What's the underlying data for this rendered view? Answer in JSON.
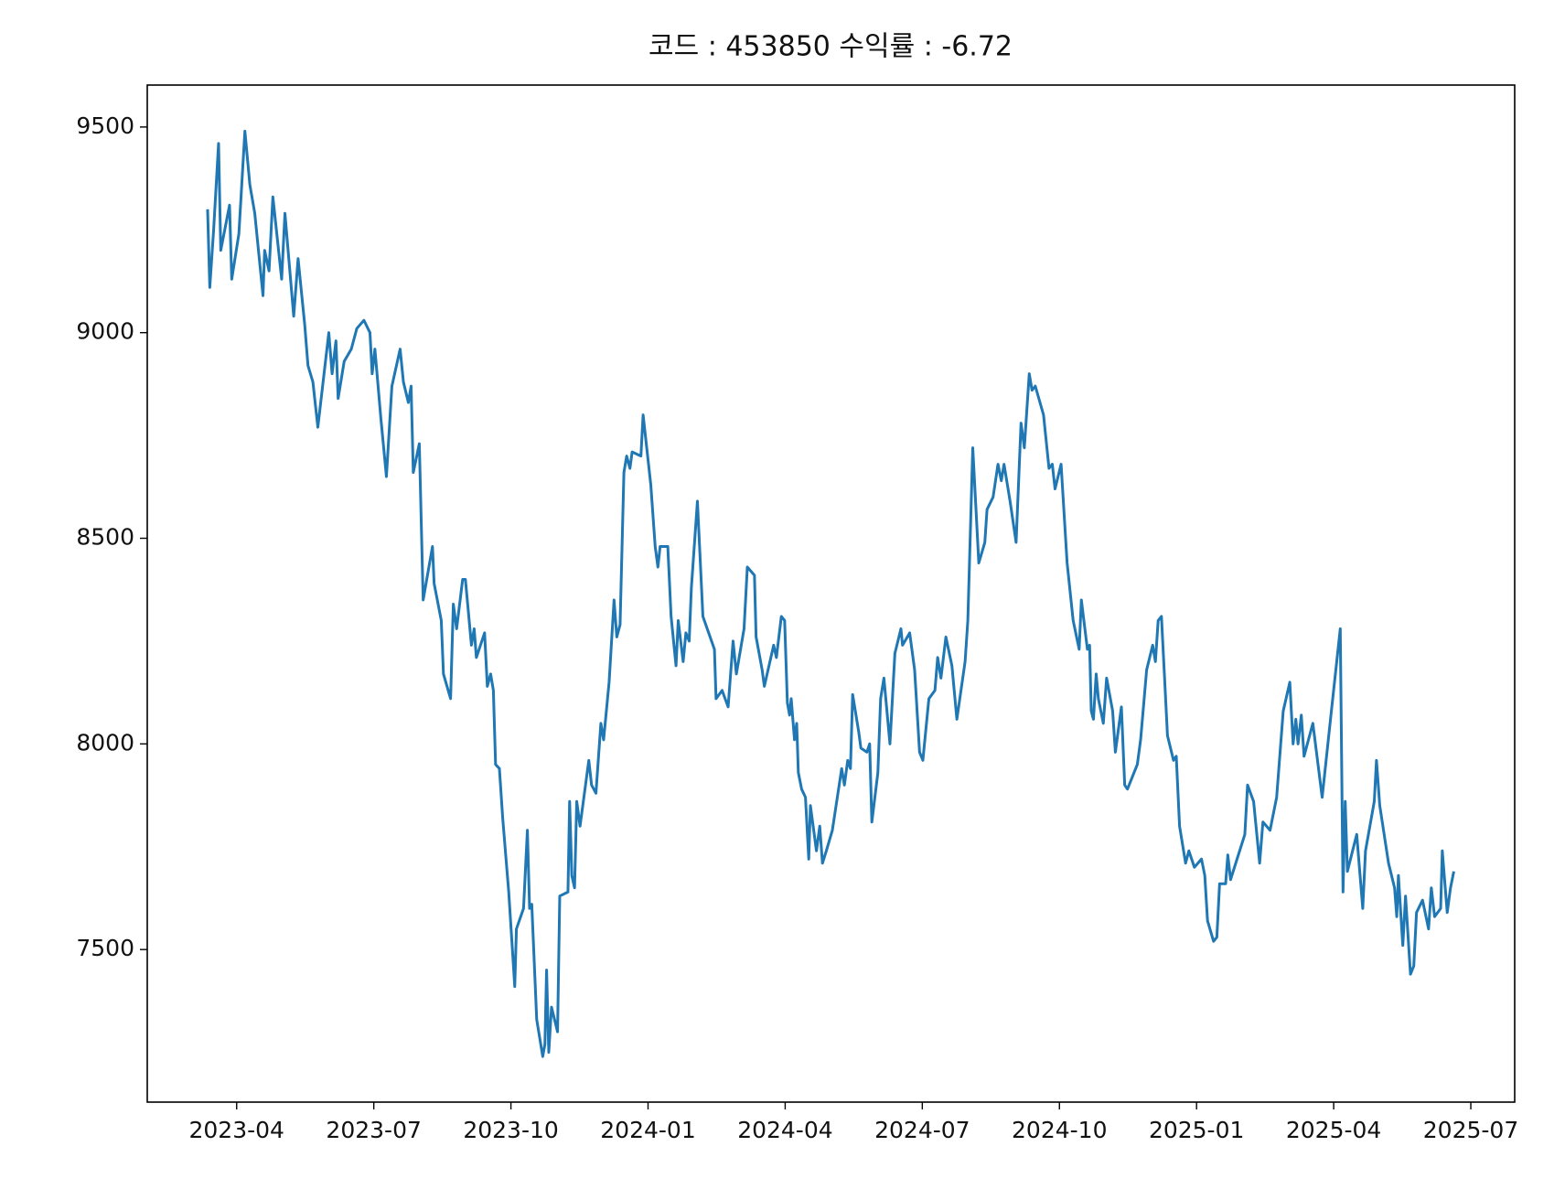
{
  "chart_data": {
    "type": "line",
    "title": "코드 : 453850 수익률 : -6.72",
    "color": "#1f77b4",
    "grid": false,
    "x": [
      2023.197,
      2023.201,
      2023.208,
      2023.217,
      2023.221,
      2023.237,
      2023.241,
      2023.254,
      2023.265,
      2023.274,
      2023.283,
      2023.298,
      2023.301,
      2023.309,
      2023.316,
      2023.332,
      2023.338,
      2023.354,
      2023.362,
      2023.374,
      2023.38,
      2023.389,
      2023.398,
      2023.418,
      2023.424,
      2023.431,
      2023.435,
      2023.446,
      2023.459,
      2023.469,
      2023.482,
      2023.493,
      2023.497,
      2023.502,
      2023.513,
      2023.523,
      2023.533,
      2023.548,
      2023.554,
      2023.563,
      2023.568,
      2023.572,
      2023.583,
      2023.59,
      2023.607,
      2023.61,
      2023.623,
      2023.627,
      2023.64,
      2023.645,
      2023.651,
      2023.662,
      2023.667,
      2023.678,
      2023.683,
      2023.687,
      2023.702,
      2023.707,
      2023.713,
      2023.718,
      2023.722,
      2023.729,
      2023.735,
      2023.746,
      2023.757,
      2023.76,
      2023.773,
      2023.78,
      2023.784,
      2023.788,
      2023.797,
      2023.808,
      2023.812,
      2023.815,
      2023.819,
      2023.824,
      2023.835,
      2023.839,
      2023.854,
      2023.857,
      2023.861,
      2023.866,
      2023.87,
      2023.876,
      2023.892,
      2023.897,
      2023.905,
      2023.914,
      2023.919,
      2023.929,
      2023.938,
      2023.943,
      2023.949,
      2023.956,
      2023.961,
      2023.967,
      2023.971,
      2023.987,
      2023.991,
      2024.005,
      2024.013,
      2024.018,
      2024.022,
      2024.036,
      2024.042,
      2024.051,
      2024.055,
      2024.064,
      2024.069,
      2024.075,
      2024.079,
      2024.09,
      2024.1,
      2024.121,
      2024.124,
      2024.135,
      2024.146,
      2024.155,
      2024.161,
      2024.175,
      2024.181,
      2024.194,
      2024.197,
      2024.208,
      2024.212,
      2024.229,
      2024.234,
      2024.243,
      2024.249,
      2024.254,
      2024.258,
      2024.261,
      2024.267,
      2024.271,
      2024.274,
      2024.28,
      2024.287,
      2024.293,
      2024.296,
      2024.307,
      2024.313,
      2024.318,
      2024.325,
      2024.336,
      2024.353,
      2024.358,
      2024.364,
      2024.369,
      2024.373,
      2024.384,
      2024.388,
      2024.399,
      2024.404,
      2024.408,
      2024.419,
      2024.424,
      2024.43,
      2024.441,
      2024.45,
      2024.461,
      2024.464,
      2024.477,
      2024.486,
      2024.495,
      2024.501,
      2024.512,
      2024.523,
      2024.528,
      2024.534,
      2024.543,
      2024.554,
      2024.563,
      2024.578,
      2024.583,
      2024.592,
      2024.603,
      2024.614,
      2024.618,
      2024.629,
      2024.638,
      2024.644,
      2024.649,
      2024.66,
      2024.671,
      2024.68,
      2024.686,
      2024.695,
      2024.7,
      2024.706,
      2024.721,
      2024.731,
      2024.737,
      2024.742,
      2024.753,
      2024.764,
      2024.775,
      2024.786,
      2024.79,
      2024.801,
      2024.805,
      2024.808,
      2024.812,
      2024.817,
      2024.821,
      2024.83,
      2024.836,
      2024.847,
      2024.852,
      2024.863,
      2024.869,
      2024.874,
      2024.892,
      2024.898,
      2024.909,
      2024.92,
      2024.925,
      2024.93,
      2024.936,
      2024.947,
      2024.958,
      2024.963,
      2024.969,
      2024.98,
      2024.986,
      2024.996,
      2025.009,
      2025.015,
      2025.02,
      2025.031,
      2025.037,
      2025.042,
      2025.053,
      2025.057,
      2025.062,
      2025.088,
      2025.093,
      2025.104,
      2025.115,
      2025.121,
      2025.134,
      2025.146,
      2025.158,
      2025.17,
      2025.176,
      2025.181,
      2025.185,
      2025.191,
      2025.196,
      2025.212,
      2025.229,
      2025.245,
      2025.262,
      2025.267,
      2025.271,
      2025.275,
      2025.292,
      2025.303,
      2025.308,
      2025.324,
      2025.328,
      2025.334,
      2025.35,
      2025.361,
      2025.365,
      2025.368,
      2025.376,
      2025.381,
      2025.39,
      2025.396,
      2025.401,
      2025.412,
      2025.423,
      2025.428,
      2025.434,
      2025.445,
      2025.448,
      2025.457,
      2025.463,
      2025.469
    ],
    "values": [
      9300,
      9110,
      9250,
      9460,
      9200,
      9310,
      9130,
      9240,
      9490,
      9360,
      9290,
      9090,
      9200,
      9150,
      9330,
      9130,
      9290,
      9040,
      9180,
      9020,
      8920,
      8880,
      8770,
      9000,
      8900,
      8980,
      8840,
      8930,
      8960,
      9010,
      9030,
      9000,
      8900,
      8960,
      8790,
      8650,
      8870,
      8960,
      8880,
      8830,
      8870,
      8660,
      8730,
      8350,
      8480,
      8390,
      8300,
      8170,
      8110,
      8340,
      8280,
      8400,
      8400,
      8240,
      8280,
      8210,
      8270,
      8140,
      8170,
      8130,
      7950,
      7940,
      7820,
      7640,
      7410,
      7550,
      7600,
      7790,
      7600,
      7610,
      7330,
      7240,
      7270,
      7450,
      7250,
      7360,
      7300,
      7630,
      7640,
      7860,
      7680,
      7650,
      7860,
      7800,
      7960,
      7900,
      7880,
      8050,
      8010,
      8150,
      8350,
      8260,
      8290,
      8660,
      8700,
      8670,
      8710,
      8700,
      8800,
      8630,
      8480,
      8430,
      8480,
      8480,
      8310,
      8190,
      8300,
      8200,
      8270,
      8250,
      8380,
      8590,
      8310,
      8230,
      8110,
      8130,
      8090,
      8250,
      8170,
      8280,
      8430,
      8410,
      8260,
      8180,
      8140,
      8240,
      8210,
      8310,
      8300,
      8100,
      8070,
      8110,
      8010,
      8050,
      7930,
      7890,
      7870,
      7720,
      7850,
      7740,
      7800,
      7710,
      7740,
      7790,
      7940,
      7900,
      7960,
      7940,
      8120,
      8030,
      7990,
      7980,
      8000,
      7810,
      7930,
      8110,
      8160,
      8000,
      8220,
      8280,
      8240,
      8270,
      8180,
      7980,
      7960,
      8110,
      8130,
      8210,
      8160,
      8260,
      8190,
      8060,
      8200,
      8300,
      8720,
      8440,
      8490,
      8570,
      8600,
      8680,
      8640,
      8680,
      8590,
      8490,
      8780,
      8720,
      8900,
      8860,
      8870,
      8800,
      8670,
      8680,
      8620,
      8680,
      8440,
      8300,
      8230,
      8350,
      8230,
      8240,
      8080,
      8060,
      8170,
      8110,
      8050,
      8160,
      8080,
      7980,
      8090,
      7900,
      7890,
      7950,
      8010,
      8180,
      8240,
      8200,
      8300,
      8310,
      8020,
      7960,
      7970,
      7800,
      7710,
      7740,
      7700,
      7720,
      7680,
      7570,
      7520,
      7530,
      7660,
      7660,
      7730,
      7670,
      7780,
      7900,
      7860,
      7710,
      7810,
      7790,
      7870,
      8080,
      8150,
      8000,
      8060,
      8000,
      8070,
      7970,
      8050,
      7870,
      8070,
      8280,
      7640,
      7860,
      7690,
      7780,
      7600,
      7740,
      7860,
      7960,
      7850,
      7710,
      7650,
      7580,
      7680,
      7510,
      7630,
      7440,
      7460,
      7590,
      7620,
      7550,
      7650,
      7580,
      7600,
      7740,
      7590,
      7650,
      7690
    ],
    "xlim": [
      2023.087,
      2025.58
    ],
    "ylim": [
      7129,
      9602
    ],
    "xticks": [
      {
        "value": 2023.25,
        "label": "2023-04"
      },
      {
        "value": 2023.5,
        "label": "2023-07"
      },
      {
        "value": 2023.75,
        "label": "2023-10"
      },
      {
        "value": 2024,
        "label": "2024-01"
      },
      {
        "value": 2024.25,
        "label": "2024-04"
      },
      {
        "value": 2024.5,
        "label": "2024-07"
      },
      {
        "value": 2024.75,
        "label": "2024-10"
      },
      {
        "value": 2025,
        "label": "2025-01"
      },
      {
        "value": 2025.25,
        "label": "2025-04"
      },
      {
        "value": 2025.5,
        "label": "2025-07"
      }
    ],
    "yticks": [
      7500,
      8000,
      8500,
      9000,
      9500
    ]
  }
}
